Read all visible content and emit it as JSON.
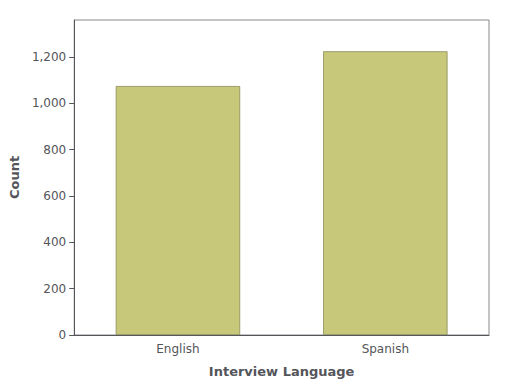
{
  "chart_data": {
    "type": "bar",
    "categories": [
      "English",
      "Spanish"
    ],
    "values": [
      1075,
      1225
    ],
    "color": "#c8c87a",
    "xlabel": "Interview Language",
    "ylabel": "Count",
    "ylim": [
      0,
      1360
    ],
    "yticks": [
      0,
      200,
      400,
      600,
      800,
      {
        "value": 1000,
        "label": "1,000"
      },
      {
        "value": 1200,
        "label": "1,200"
      }
    ],
    "grid": false
  }
}
